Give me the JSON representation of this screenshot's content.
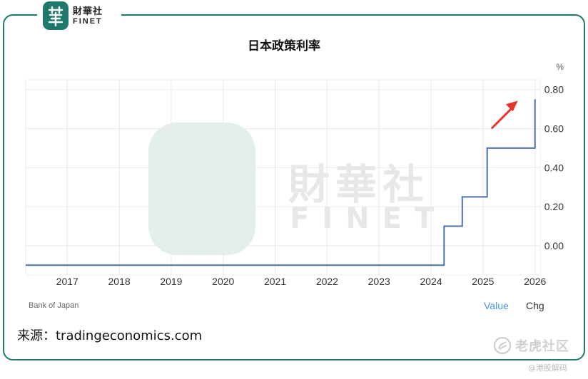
{
  "brand": {
    "name_cn": "財華社",
    "name_en": "FINET"
  },
  "watermark": {
    "name_cn": "財華社",
    "name_en": "FINET"
  },
  "chart_data": {
    "type": "line",
    "title": "日本政策利率",
    "unit": "%",
    "x_ticks": [
      "2017",
      "2018",
      "2019",
      "2020",
      "2021",
      "2022",
      "2023",
      "2024",
      "2025",
      "2026"
    ],
    "y_ticks": [
      "0.80",
      "0.60",
      "0.40",
      "0.20",
      "0.00"
    ],
    "ylim": [
      -0.15,
      0.85
    ],
    "xlim": [
      2016.2,
      2026.1
    ],
    "grid": true,
    "y_axis_position": "right",
    "series": [
      {
        "values": [
          [
            2016.2,
            -0.1
          ],
          [
            2024.25,
            -0.1
          ],
          [
            2024.25,
            0.1
          ],
          [
            2024.6,
            0.1
          ],
          [
            2024.6,
            0.25
          ],
          [
            2025.08,
            0.25
          ],
          [
            2025.08,
            0.5
          ],
          [
            2026.0,
            0.5
          ],
          [
            2026.0,
            0.75
          ]
        ],
        "color": "#4a72a8"
      }
    ],
    "source": "Bank of Japan",
    "legend": {
      "value": "Value",
      "chg": "Chg"
    },
    "annotation": {
      "type": "arrow",
      "color": "#e8332a",
      "direction": "up-right"
    }
  },
  "footer": {
    "credit": "来源：tradingeconomics.com",
    "tiger_label": "老虎社区",
    "tiger_sub": "@港股解码"
  }
}
